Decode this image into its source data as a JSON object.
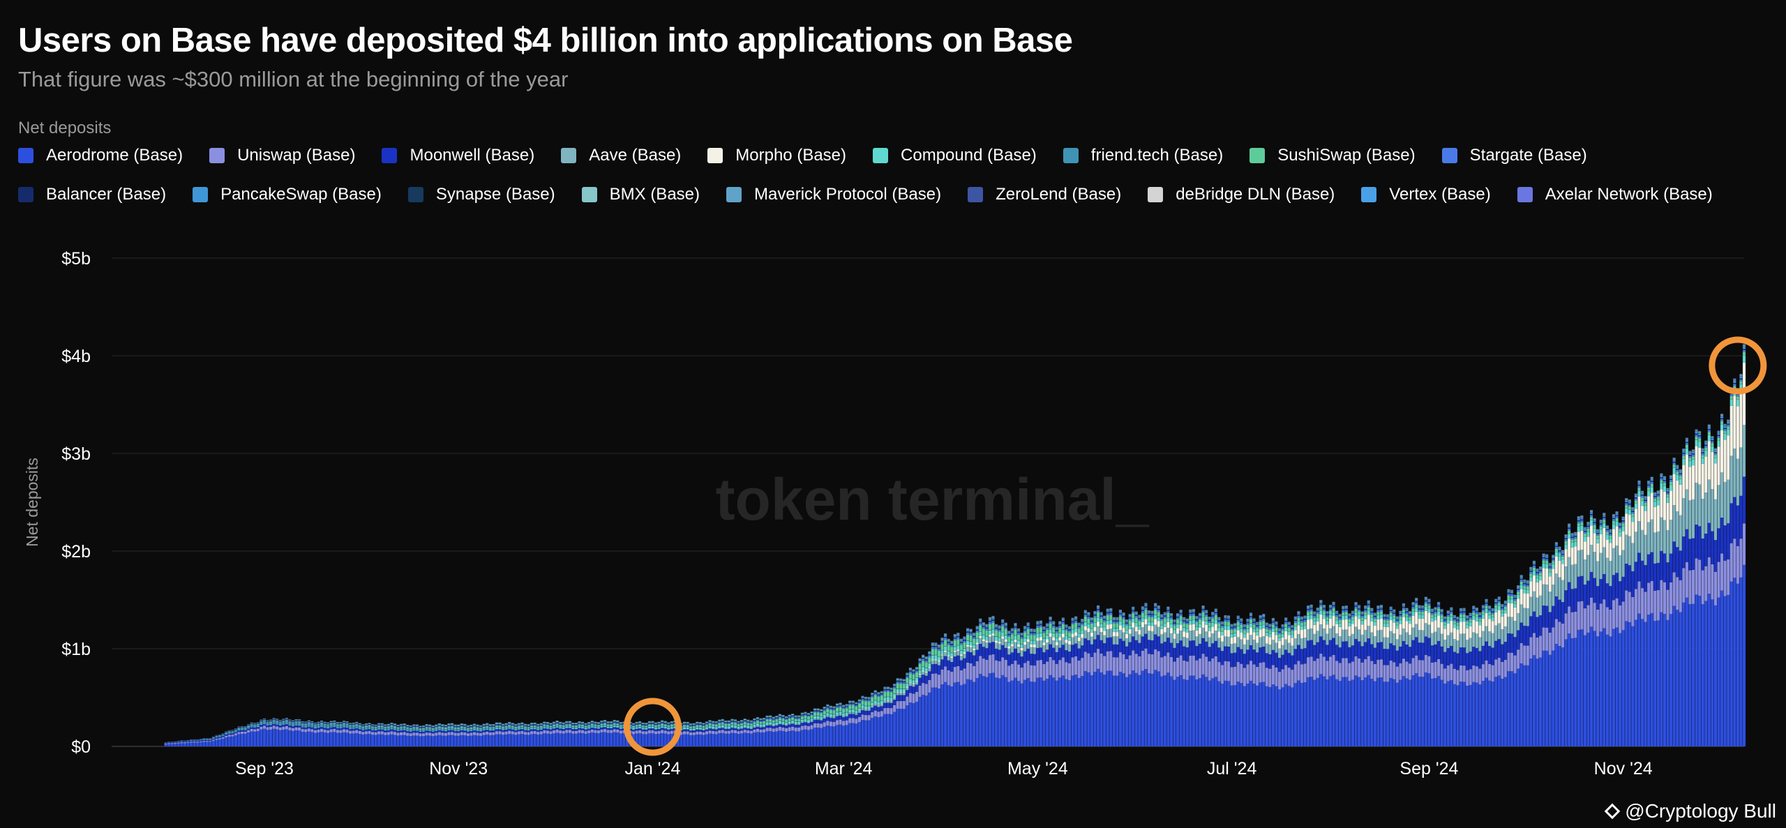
{
  "header": {
    "title": "Users on Base have deposited $4 billion into applications on Base",
    "subtitle": "That figure was ~$300 million at the beginning of the year"
  },
  "legend": {
    "title": "Net deposits",
    "items": [
      {
        "label": "Aerodrome (Base)",
        "color": "#2d4fe0"
      },
      {
        "label": "Uniswap (Base)",
        "color": "#8b8fe0"
      },
      {
        "label": "Moonwell (Base)",
        "color": "#1b33c4"
      },
      {
        "label": "Aave (Base)",
        "color": "#7fb4c0"
      },
      {
        "label": "Morpho (Base)",
        "color": "#f4f2e6"
      },
      {
        "label": "Compound (Base)",
        "color": "#5fd9d0"
      },
      {
        "label": "friend.tech (Base)",
        "color": "#3f93b5"
      },
      {
        "label": "SushiSwap (Base)",
        "color": "#5ecc9a"
      },
      {
        "label": "Stargate (Base)",
        "color": "#4a7ae8"
      },
      {
        "label": "Balancer (Base)",
        "color": "#162b6b"
      },
      {
        "label": "PancakeSwap (Base)",
        "color": "#3f97d8"
      },
      {
        "label": "Synapse (Base)",
        "color": "#173a5e"
      },
      {
        "label": "BMX (Base)",
        "color": "#86c7c9"
      },
      {
        "label": "Maverick Protocol (Base)",
        "color": "#5fa3c9"
      },
      {
        "label": "ZeroLend (Base)",
        "color": "#3d55a3"
      },
      {
        "label": "deBridge DLN (Base)",
        "color": "#d4d4d4"
      },
      {
        "label": "Vertex (Base)",
        "color": "#4aa0e8"
      },
      {
        "label": "Axelar Network (Base)",
        "color": "#6a77e0"
      }
    ]
  },
  "chart_data": {
    "type": "bar",
    "stacked": true,
    "ylabel": "Net deposits",
    "ylim": [
      0,
      5
    ],
    "y_unit": "billion USD",
    "y_ticks": [
      "$0",
      "$1b",
      "$2b",
      "$3b",
      "$4b",
      "$5b"
    ],
    "x_ticks": [
      "Sep '23",
      "Nov '23",
      "Jan '24",
      "Mar '24",
      "May '24",
      "Jul '24",
      "Sep '24",
      "Nov '24"
    ],
    "x_range": [
      "2023-07-15",
      "2024-12-09"
    ],
    "grid": true,
    "watermark": "token terminal_",
    "x": [
      "2023-07-15",
      "2023-08-01",
      "2023-08-15",
      "2023-09-01",
      "2023-09-15",
      "2023-10-01",
      "2023-10-15",
      "2023-11-01",
      "2023-11-15",
      "2023-12-01",
      "2023-12-15",
      "2024-01-01",
      "2024-01-15",
      "2024-02-01",
      "2024-02-15",
      "2024-03-01",
      "2024-03-15",
      "2024-04-01",
      "2024-04-15",
      "2024-05-01",
      "2024-05-15",
      "2024-06-01",
      "2024-06-15",
      "2024-07-01",
      "2024-07-15",
      "2024-08-01",
      "2024-08-15",
      "2024-09-01",
      "2024-09-15",
      "2024-10-01",
      "2024-10-15",
      "2024-11-01",
      "2024-11-15",
      "2024-12-01",
      "2024-12-09"
    ],
    "series": [
      {
        "name": "Aerodrome (Base)",
        "values": [
          0,
          0.02,
          0.05,
          0.18,
          0.15,
          0.13,
          0.11,
          0.11,
          0.12,
          0.13,
          0.14,
          0.13,
          0.12,
          0.14,
          0.16,
          0.22,
          0.32,
          0.62,
          0.72,
          0.67,
          0.74,
          0.76,
          0.72,
          0.66,
          0.61,
          0.72,
          0.68,
          0.72,
          0.62,
          0.82,
          1.12,
          1.22,
          1.38,
          1.55,
          1.75
        ]
      },
      {
        "name": "Uniswap (Base)",
        "values": [
          0,
          0.01,
          0.01,
          0.03,
          0.03,
          0.03,
          0.03,
          0.03,
          0.03,
          0.03,
          0.03,
          0.03,
          0.03,
          0.03,
          0.04,
          0.05,
          0.06,
          0.15,
          0.18,
          0.17,
          0.19,
          0.2,
          0.2,
          0.2,
          0.19,
          0.2,
          0.18,
          0.17,
          0.16,
          0.2,
          0.27,
          0.3,
          0.33,
          0.37,
          0.4
        ]
      },
      {
        "name": "Moonwell (Base)",
        "values": [
          0,
          0.005,
          0.01,
          0.02,
          0.02,
          0.02,
          0.02,
          0.02,
          0.02,
          0.02,
          0.02,
          0.02,
          0.02,
          0.02,
          0.03,
          0.04,
          0.05,
          0.1,
          0.12,
          0.12,
          0.13,
          0.14,
          0.15,
          0.15,
          0.15,
          0.17,
          0.17,
          0.18,
          0.18,
          0.2,
          0.24,
          0.26,
          0.3,
          0.35,
          0.45
        ]
      },
      {
        "name": "Aave (Base)",
        "values": [
          0,
          0,
          0,
          0,
          0,
          0,
          0,
          0,
          0,
          0,
          0,
          0,
          0.005,
          0.01,
          0.01,
          0.015,
          0.02,
          0.04,
          0.06,
          0.07,
          0.08,
          0.09,
          0.1,
          0.1,
          0.1,
          0.12,
          0.12,
          0.13,
          0.14,
          0.18,
          0.25,
          0.28,
          0.35,
          0.45,
          0.5
        ]
      },
      {
        "name": "Morpho (Base)",
        "values": [
          0,
          0,
          0,
          0,
          0,
          0,
          0,
          0,
          0,
          0,
          0,
          0,
          0,
          0,
          0,
          0,
          0.005,
          0.01,
          0.02,
          0.03,
          0.04,
          0.05,
          0.06,
          0.07,
          0.08,
          0.1,
          0.11,
          0.12,
          0.12,
          0.15,
          0.18,
          0.2,
          0.3,
          0.4,
          0.6
        ]
      },
      {
        "name": "Compound (Base)",
        "values": [
          0,
          0.001,
          0.002,
          0.005,
          0.005,
          0.006,
          0.007,
          0.008,
          0.009,
          0.01,
          0.012,
          0.015,
          0.015,
          0.02,
          0.02,
          0.025,
          0.03,
          0.04,
          0.04,
          0.04,
          0.04,
          0.04,
          0.04,
          0.04,
          0.035,
          0.04,
          0.04,
          0.04,
          0.04,
          0.04,
          0.05,
          0.05,
          0.06,
          0.06,
          0.07
        ]
      },
      {
        "name": "friend.tech (Base)",
        "values": [
          0,
          0.002,
          0.005,
          0.02,
          0.025,
          0.02,
          0.015,
          0.012,
          0.01,
          0.01,
          0.008,
          0.008,
          0.007,
          0.006,
          0.006,
          0.006,
          0.005,
          0.005,
          0.005,
          0.004,
          0.004,
          0.003,
          0.003,
          0.003,
          0.003,
          0.003,
          0.002,
          0.002,
          0.002,
          0.002,
          0.002,
          0.002,
          0.002,
          0.002,
          0.002
        ]
      },
      {
        "name": "SushiSwap (Base)",
        "values": [
          0,
          0.001,
          0.002,
          0.005,
          0.006,
          0.008,
          0.01,
          0.012,
          0.012,
          0.013,
          0.014,
          0.015,
          0.016,
          0.02,
          0.025,
          0.04,
          0.05,
          0.06,
          0.06,
          0.055,
          0.05,
          0.05,
          0.045,
          0.04,
          0.035,
          0.035,
          0.03,
          0.03,
          0.03,
          0.03,
          0.03,
          0.03,
          0.03,
          0.03,
          0.03
        ]
      },
      {
        "name": "Stargate (Base)",
        "values": [
          0,
          0.003,
          0.005,
          0.01,
          0.01,
          0.01,
          0.01,
          0.01,
          0.01,
          0.01,
          0.01,
          0.01,
          0.01,
          0.012,
          0.012,
          0.015,
          0.015,
          0.02,
          0.02,
          0.02,
          0.02,
          0.02,
          0.02,
          0.02,
          0.02,
          0.02,
          0.02,
          0.02,
          0.02,
          0.02,
          0.02,
          0.02,
          0.02,
          0.02,
          0.02
        ]
      },
      {
        "name": "Balancer (Base)",
        "values": [
          0,
          0.001,
          0.002,
          0.003,
          0.003,
          0.003,
          0.003,
          0.004,
          0.004,
          0.004,
          0.004,
          0.005,
          0.005,
          0.005,
          0.006,
          0.006,
          0.008,
          0.01,
          0.01,
          0.01,
          0.01,
          0.01,
          0.01,
          0.01,
          0.01,
          0.01,
          0.01,
          0.01,
          0.01,
          0.01,
          0.01,
          0.01,
          0.01,
          0.01,
          0.01
        ]
      },
      {
        "name": "PancakeSwap (Base)",
        "values": [
          0,
          0,
          0,
          0.001,
          0.001,
          0.001,
          0.001,
          0.002,
          0.002,
          0.002,
          0.002,
          0.002,
          0.002,
          0.003,
          0.003,
          0.004,
          0.005,
          0.008,
          0.01,
          0.01,
          0.01,
          0.01,
          0.01,
          0.01,
          0.01,
          0.01,
          0.01,
          0.01,
          0.01,
          0.012,
          0.015,
          0.015,
          0.015,
          0.02,
          0.02
        ]
      },
      {
        "name": "Synapse (Base)",
        "values": [
          0,
          0.001,
          0.002,
          0.003,
          0.003,
          0.003,
          0.003,
          0.003,
          0.003,
          0.003,
          0.003,
          0.003,
          0.003,
          0.003,
          0.003,
          0.003,
          0.003,
          0.003,
          0.003,
          0.003,
          0.003,
          0.003,
          0.003,
          0.003,
          0.003,
          0.003,
          0.003,
          0.003,
          0.003,
          0.003,
          0.003,
          0.003,
          0.003,
          0.003,
          0.003
        ]
      },
      {
        "name": "BMX (Base)",
        "values": [
          0,
          0,
          0,
          0.002,
          0.003,
          0.004,
          0.005,
          0.006,
          0.006,
          0.006,
          0.006,
          0.006,
          0.006,
          0.006,
          0.006,
          0.006,
          0.006,
          0.006,
          0.006,
          0.005,
          0.005,
          0.005,
          0.005,
          0.005,
          0.005,
          0.005,
          0.005,
          0.005,
          0.005,
          0.005,
          0.005,
          0.005,
          0.005,
          0.005,
          0.005
        ]
      },
      {
        "name": "Maverick Protocol (Base)",
        "values": [
          0,
          0,
          0.002,
          0.005,
          0.006,
          0.006,
          0.006,
          0.006,
          0.006,
          0.006,
          0.006,
          0.006,
          0.006,
          0.006,
          0.006,
          0.006,
          0.006,
          0.006,
          0.006,
          0.006,
          0.006,
          0.006,
          0.005,
          0.005,
          0.005,
          0.005,
          0.005,
          0.005,
          0.005,
          0.005,
          0.005,
          0.005,
          0.005,
          0.005,
          0.005
        ]
      },
      {
        "name": "ZeroLend (Base)",
        "values": [
          0,
          0,
          0,
          0,
          0,
          0,
          0,
          0,
          0,
          0,
          0,
          0,
          0,
          0,
          0,
          0.001,
          0.002,
          0.003,
          0.003,
          0.003,
          0.003,
          0.003,
          0.003,
          0.003,
          0.003,
          0.003,
          0.003,
          0.003,
          0.003,
          0.003,
          0.003,
          0.003,
          0.003,
          0.003,
          0.003
        ]
      },
      {
        "name": "deBridge DLN (Base)",
        "values": [
          0,
          0,
          0,
          0,
          0.001,
          0.001,
          0.001,
          0.001,
          0.001,
          0.001,
          0.001,
          0.001,
          0.001,
          0.001,
          0.001,
          0.001,
          0.001,
          0.002,
          0.002,
          0.002,
          0.002,
          0.002,
          0.002,
          0.002,
          0.002,
          0.002,
          0.002,
          0.002,
          0.002,
          0.002,
          0.002,
          0.002,
          0.002,
          0.002,
          0.002
        ]
      },
      {
        "name": "Vertex (Base)",
        "values": [
          0,
          0,
          0,
          0,
          0,
          0.001,
          0.002,
          0.002,
          0.002,
          0.002,
          0.002,
          0.002,
          0.002,
          0.002,
          0.002,
          0.003,
          0.003,
          0.004,
          0.004,
          0.004,
          0.004,
          0.004,
          0.004,
          0.004,
          0.004,
          0.004,
          0.004,
          0.004,
          0.004,
          0.004,
          0.004,
          0.004,
          0.004,
          0.004,
          0.004
        ]
      },
      {
        "name": "Axelar Network (Base)",
        "values": [
          0,
          0,
          0,
          0.001,
          0.001,
          0.001,
          0.001,
          0.001,
          0.001,
          0.001,
          0.001,
          0.001,
          0.001,
          0.001,
          0.001,
          0.001,
          0.001,
          0.002,
          0.002,
          0.002,
          0.002,
          0.002,
          0.002,
          0.002,
          0.002,
          0.002,
          0.002,
          0.002,
          0.002,
          0.002,
          0.002,
          0.002,
          0.002,
          0.002,
          0.002
        ]
      }
    ],
    "annotations": [
      {
        "type": "circle",
        "x": "2024-01-01",
        "y": 0.2,
        "color": "#f0953a"
      },
      {
        "type": "circle",
        "x": "2024-12-07",
        "y": 3.9,
        "color": "#f0953a"
      }
    ]
  },
  "footer": {
    "credit": "@Cryptology Bull"
  }
}
